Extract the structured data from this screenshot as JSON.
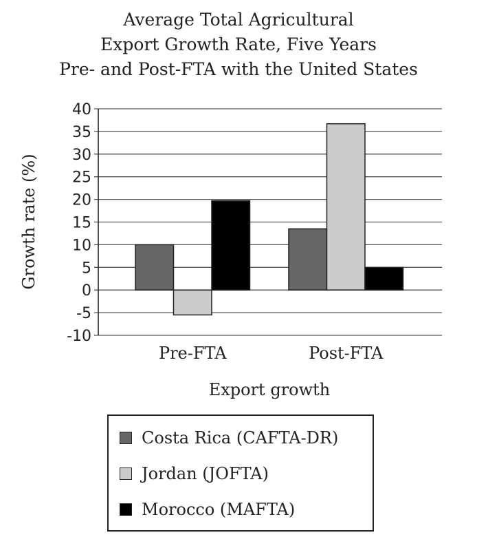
{
  "chart_data": {
    "type": "bar",
    "title_lines": [
      "Average Total Agricultural",
      "Export Growth Rate, Five Years",
      "Pre- and Post-FTA with the United States"
    ],
    "xlabel": "Export growth",
    "ylabel": "Growth rate (%)",
    "categories": [
      "Pre-FTA",
      "Post-FTA"
    ],
    "series": [
      {
        "name": "Costa Rica (CAFTA-DR)",
        "values": [
          10,
          13.5
        ],
        "color": "#666666"
      },
      {
        "name": "Jordan (JOFTA)",
        "values": [
          -5.5,
          36.7
        ],
        "color": "#cccccc"
      },
      {
        "name": "Morocco (MAFTA)",
        "values": [
          19.7,
          5
        ],
        "color": "#000000"
      }
    ],
    "ylim": [
      -10,
      40
    ],
    "yticks": [
      "40",
      "35",
      "30",
      "25",
      "20",
      "15",
      "10",
      "5",
      "0",
      "-5",
      "-10"
    ],
    "grid": true,
    "legend_position": "bottom"
  }
}
